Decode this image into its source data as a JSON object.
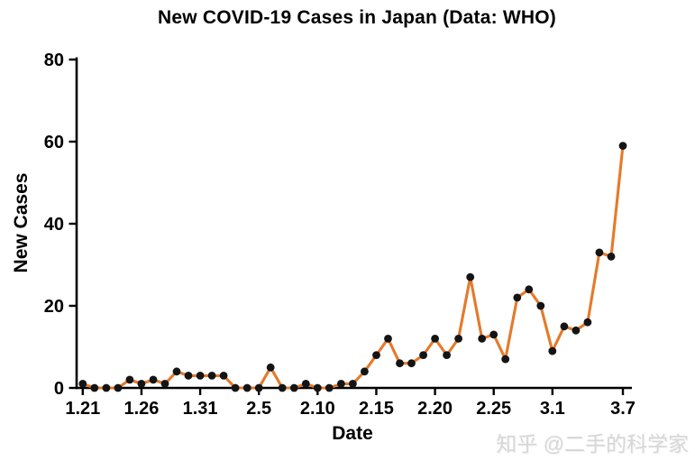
{
  "title": "New COVID-19 Cases in Japan (Data: WHO)",
  "watermark": "知乎 @二手的科学家",
  "chart_data": {
    "type": "line",
    "title": "New COVID-19 Cases in Japan (Data: WHO)",
    "xlabel": "Date",
    "ylabel": "New Cases",
    "x": [
      "1.21",
      "1.22",
      "1.23",
      "1.24",
      "1.25",
      "1.26",
      "1.27",
      "1.28",
      "1.29",
      "1.30",
      "1.31",
      "2.1",
      "2.2",
      "2.3",
      "2.4",
      "2.5",
      "2.6",
      "2.7",
      "2.8",
      "2.9",
      "2.10",
      "2.11",
      "2.12",
      "2.13",
      "2.14",
      "2.15",
      "2.16",
      "2.17",
      "2.18",
      "2.19",
      "2.20",
      "2.21",
      "2.22",
      "2.23",
      "2.24",
      "2.25",
      "2.26",
      "2.27",
      "2.28",
      "2.29",
      "3.1",
      "3.2",
      "3.3",
      "3.4",
      "3.5",
      "3.6",
      "3.7"
    ],
    "values": [
      1,
      0,
      0,
      0,
      2,
      1,
      2,
      1,
      4,
      3,
      3,
      3,
      3,
      0,
      0,
      0,
      5,
      0,
      0,
      1,
      0,
      0,
      1,
      1,
      4,
      8,
      12,
      6,
      6,
      8,
      12,
      8,
      12,
      27,
      12,
      13,
      7,
      22,
      24,
      20,
      9,
      15,
      14,
      16,
      33,
      32,
      59
    ],
    "x_tick_labels": [
      "1.21",
      "1.26",
      "1.31",
      "2.5",
      "2.10",
      "2.15",
      "2.20",
      "2.25",
      "3.1",
      "3.7"
    ],
    "y_ticks": [
      0,
      20,
      40,
      60,
      80
    ],
    "ylim": [
      0,
      80
    ],
    "grid": false,
    "legend": "none",
    "line_color": "#e6792a",
    "marker_color": "#141414",
    "axis_color": "#000000"
  }
}
